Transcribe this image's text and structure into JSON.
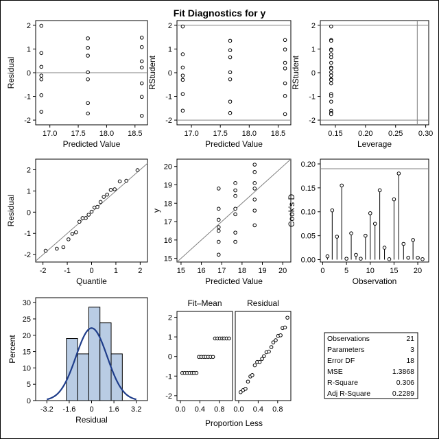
{
  "title": "Fit Diagnostics for y",
  "colors": {
    "frame": "#000000",
    "refline": "#808080",
    "bar_fill": "#b9cce4",
    "curve": "#1f3d8a"
  },
  "chart_data": [
    {
      "type": "scatter",
      "xlabel": "Predicted Value",
      "ylabel": "Residual",
      "xlim": [
        16.75,
        18.72
      ],
      "ylim": [
        -2.2,
        2.2
      ],
      "xticks": [
        "17.0",
        "17.5",
        "18.0",
        "18.5"
      ],
      "yticks": [
        "2",
        "1",
        "0",
        "-1",
        "-2"
      ],
      "reflines_y": [
        0
      ],
      "points": [
        [
          16.85,
          1.98
        ],
        [
          16.85,
          0.83
        ],
        [
          16.85,
          0.25
        ],
        [
          16.85,
          -0.12
        ],
        [
          16.85,
          -0.28
        ],
        [
          16.85,
          -0.95
        ],
        [
          16.85,
          -1.65
        ],
        [
          17.67,
          1.45
        ],
        [
          17.67,
          1.05
        ],
        [
          17.67,
          0.72
        ],
        [
          17.67,
          0.02
        ],
        [
          17.67,
          -0.28
        ],
        [
          17.67,
          -1.28
        ],
        [
          17.67,
          -1.72
        ],
        [
          18.62,
          1.48
        ],
        [
          18.62,
          1.08
        ],
        [
          18.62,
          0.48
        ],
        [
          18.62,
          0.22
        ],
        [
          18.62,
          -0.45
        ],
        [
          18.62,
          -1.02
        ],
        [
          18.62,
          -1.82
        ]
      ]
    },
    {
      "type": "scatter",
      "xlabel": "Predicted Value",
      "ylabel": "RStudent",
      "xlim": [
        16.75,
        18.72
      ],
      "ylim": [
        -2.2,
        2.2
      ],
      "xticks": [
        "17.0",
        "17.5",
        "18.0",
        "18.5"
      ],
      "yticks": [
        "2",
        "1",
        "0",
        "-1",
        "-2"
      ],
      "reflines_y": [
        2,
        -2
      ],
      "points": [
        [
          16.85,
          1.95
        ],
        [
          16.85,
          0.78
        ],
        [
          16.85,
          0.22
        ],
        [
          16.85,
          -0.12
        ],
        [
          16.85,
          -0.3
        ],
        [
          16.85,
          -0.9
        ],
        [
          16.85,
          -1.6
        ],
        [
          17.67,
          1.35
        ],
        [
          17.67,
          0.95
        ],
        [
          17.67,
          0.65
        ],
        [
          17.67,
          0.02
        ],
        [
          17.67,
          -0.28
        ],
        [
          17.67,
          -1.22
        ],
        [
          17.67,
          -1.7
        ],
        [
          18.62,
          1.38
        ],
        [
          18.62,
          0.98
        ],
        [
          18.62,
          0.42
        ],
        [
          18.62,
          0.18
        ],
        [
          18.62,
          -0.45
        ],
        [
          18.62,
          -0.98
        ],
        [
          18.62,
          -1.75
        ]
      ]
    },
    {
      "type": "scatter",
      "xlabel": "Leverage",
      "ylabel": "RStudent",
      "xlim": [
        0.125,
        0.305
      ],
      "ylim": [
        -2.2,
        2.2
      ],
      "xticks": [
        "0.15",
        "0.20",
        "0.25",
        "0.30"
      ],
      "yticks": [
        "2",
        "1",
        "0",
        "-1",
        "-2"
      ],
      "reflines_y": [
        2,
        -2
      ],
      "reflines_x": [
        0.286
      ],
      "points": [
        [
          0.143,
          1.95
        ],
        [
          0.143,
          1.38
        ],
        [
          0.143,
          1.35
        ],
        [
          0.143,
          0.98
        ],
        [
          0.143,
          0.95
        ],
        [
          0.143,
          0.78
        ],
        [
          0.143,
          0.65
        ],
        [
          0.143,
          0.42
        ],
        [
          0.143,
          0.22
        ],
        [
          0.143,
          0.18
        ],
        [
          0.143,
          0.02
        ],
        [
          0.143,
          -0.12
        ],
        [
          0.143,
          -0.28
        ],
        [
          0.143,
          -0.3
        ],
        [
          0.143,
          -0.45
        ],
        [
          0.143,
          -0.9
        ],
        [
          0.143,
          -0.98
        ],
        [
          0.143,
          -1.22
        ],
        [
          0.143,
          -1.6
        ],
        [
          0.143,
          -1.7
        ],
        [
          0.143,
          -1.75
        ]
      ]
    },
    {
      "type": "scatter",
      "xlabel": "Quantile",
      "ylabel": "Residual",
      "xlim": [
        -2.3,
        2.3
      ],
      "ylim": [
        -2.35,
        2.5
      ],
      "xticks": [
        "-2",
        "-1",
        "0",
        "1",
        "2"
      ],
      "yticks": [
        "2",
        "1",
        "0",
        "-1",
        "-2"
      ],
      "diagonal": true,
      "points": [
        [
          -1.89,
          -1.82
        ],
        [
          -1.43,
          -1.72
        ],
        [
          -1.16,
          -1.65
        ],
        [
          -0.95,
          -1.28
        ],
        [
          -0.79,
          -1.02
        ],
        [
          -0.64,
          -0.95
        ],
        [
          -0.5,
          -0.45
        ],
        [
          -0.37,
          -0.28
        ],
        [
          -0.24,
          -0.28
        ],
        [
          -0.12,
          -0.12
        ],
        [
          0.0,
          0.02
        ],
        [
          0.12,
          0.22
        ],
        [
          0.24,
          0.25
        ],
        [
          0.37,
          0.48
        ],
        [
          0.5,
          0.72
        ],
        [
          0.64,
          0.83
        ],
        [
          0.79,
          1.05
        ],
        [
          0.95,
          1.08
        ],
        [
          1.16,
          1.45
        ],
        [
          1.43,
          1.48
        ],
        [
          1.89,
          1.98
        ]
      ]
    },
    {
      "type": "scatter",
      "xlabel": "Predicted Value",
      "ylabel": "y",
      "xlim": [
        14.8,
        20.4
      ],
      "ylim": [
        14.8,
        20.4
      ],
      "xticks": [
        "15",
        "16",
        "17",
        "18",
        "19",
        "20"
      ],
      "yticks": [
        "20",
        "19",
        "18",
        "17",
        "16",
        "15"
      ],
      "diagonal": true,
      "points": [
        [
          16.85,
          18.8
        ],
        [
          16.85,
          17.7
        ],
        [
          16.85,
          17.1
        ],
        [
          16.85,
          16.7
        ],
        [
          16.85,
          16.5
        ],
        [
          16.85,
          15.9
        ],
        [
          16.85,
          15.2
        ],
        [
          17.67,
          19.1
        ],
        [
          17.67,
          18.7
        ],
        [
          17.67,
          18.4
        ],
        [
          17.67,
          17.7
        ],
        [
          17.67,
          17.4
        ],
        [
          17.67,
          16.4
        ],
        [
          17.67,
          15.9
        ],
        [
          18.62,
          20.1
        ],
        [
          18.62,
          19.7
        ],
        [
          18.62,
          19.1
        ],
        [
          18.62,
          18.8
        ],
        [
          18.62,
          18.2
        ],
        [
          18.62,
          17.6
        ],
        [
          18.62,
          16.8
        ]
      ]
    },
    {
      "type": "needle",
      "xlabel": "Observation",
      "ylabel": "Cook's D",
      "xlim": [
        -0.5,
        22.3
      ],
      "ylim": [
        -0.005,
        0.21
      ],
      "xticks": [
        "0",
        "5",
        "10",
        "15",
        "20"
      ],
      "yticks": [
        "0.20",
        "0.15",
        "0.10",
        "0.05",
        "0.00"
      ],
      "reflines_y": [
        0.19
      ],
      "x": [
        1,
        2,
        3,
        4,
        5,
        6,
        7,
        8,
        9,
        10,
        11,
        12,
        13,
        14,
        15,
        16,
        17,
        18,
        19,
        20,
        21
      ],
      "values": [
        0.007,
        0.103,
        0.048,
        0.155,
        0.002,
        0.055,
        0.01,
        0.002,
        0.05,
        0.097,
        0.075,
        0.145,
        0.025,
        0.001,
        0.126,
        0.18,
        0.033,
        0.004,
        0.041,
        0.004,
        0.001
      ]
    },
    {
      "type": "histogram",
      "xlabel": "Residual",
      "ylabel": "Percent",
      "xlim": [
        -4.0,
        4.0
      ],
      "ylim": [
        0,
        31.5
      ],
      "xticks": [
        "-3.2",
        "-1.6",
        "0",
        "1.6",
        "3.2"
      ],
      "yticks": [
        "30",
        "25",
        "20",
        "15",
        "10",
        "5",
        "0"
      ],
      "bins": [
        [
          -1.8,
          -1.0
        ],
        [
          -1.0,
          -0.2
        ],
        [
          -0.2,
          0.6
        ],
        [
          0.6,
          1.4
        ],
        [
          1.4,
          2.2
        ]
      ],
      "values": [
        19.0,
        14.3,
        28.6,
        23.8,
        14.3
      ],
      "normal_curve": {
        "mean": 0,
        "sd": 1.12,
        "scale": 22.2
      }
    },
    {
      "type": "scatter",
      "panels": [
        {
          "header": "Fit–Mean",
          "points": [
            [
              0.04,
              -0.84
            ],
            [
              0.09,
              -0.84
            ],
            [
              0.14,
              -0.84
            ],
            [
              0.19,
              -0.84
            ],
            [
              0.24,
              -0.84
            ],
            [
              0.28,
              -0.84
            ],
            [
              0.33,
              -0.84
            ],
            [
              0.38,
              -0.02
            ],
            [
              0.43,
              -0.02
            ],
            [
              0.48,
              -0.02
            ],
            [
              0.52,
              -0.02
            ],
            [
              0.57,
              -0.02
            ],
            [
              0.62,
              -0.02
            ],
            [
              0.67,
              -0.02
            ],
            [
              0.71,
              0.92
            ],
            [
              0.76,
              0.92
            ],
            [
              0.81,
              0.92
            ],
            [
              0.86,
              0.92
            ],
            [
              0.9,
              0.92
            ],
            [
              0.95,
              0.92
            ],
            [
              1.0,
              0.92
            ]
          ]
        },
        {
          "header": "Residual",
          "points": [
            [
              0.04,
              -1.82
            ],
            [
              0.09,
              -1.72
            ],
            [
              0.14,
              -1.65
            ],
            [
              0.19,
              -1.28
            ],
            [
              0.24,
              -1.02
            ],
            [
              0.28,
              -0.95
            ],
            [
              0.33,
              -0.45
            ],
            [
              0.38,
              -0.28
            ],
            [
              0.43,
              -0.28
            ],
            [
              0.48,
              -0.12
            ],
            [
              0.52,
              0.02
            ],
            [
              0.57,
              0.22
            ],
            [
              0.62,
              0.25
            ],
            [
              0.67,
              0.48
            ],
            [
              0.71,
              0.72
            ],
            [
              0.76,
              0.83
            ],
            [
              0.81,
              1.05
            ],
            [
              0.86,
              1.08
            ],
            [
              0.9,
              1.45
            ],
            [
              0.95,
              1.48
            ],
            [
              1.0,
              1.98
            ]
          ]
        }
      ],
      "xlabel": "Proportion Less",
      "ylabel": "",
      "xlim": [
        -0.07,
        1.07
      ],
      "ylim": [
        -2.25,
        2.3
      ],
      "xticks": [
        "0.0",
        "0.4",
        "0.8"
      ],
      "yticks": [
        "2",
        "1",
        "0",
        "-1",
        "-2"
      ]
    },
    {
      "type": "table",
      "rows": [
        [
          "Observations",
          "21"
        ],
        [
          "Parameters",
          "3"
        ],
        [
          "Error DF",
          "18"
        ],
        [
          "MSE",
          "1.3868"
        ],
        [
          "R-Square",
          "0.306"
        ],
        [
          "Adj R-Square",
          "0.2289"
        ]
      ]
    }
  ]
}
